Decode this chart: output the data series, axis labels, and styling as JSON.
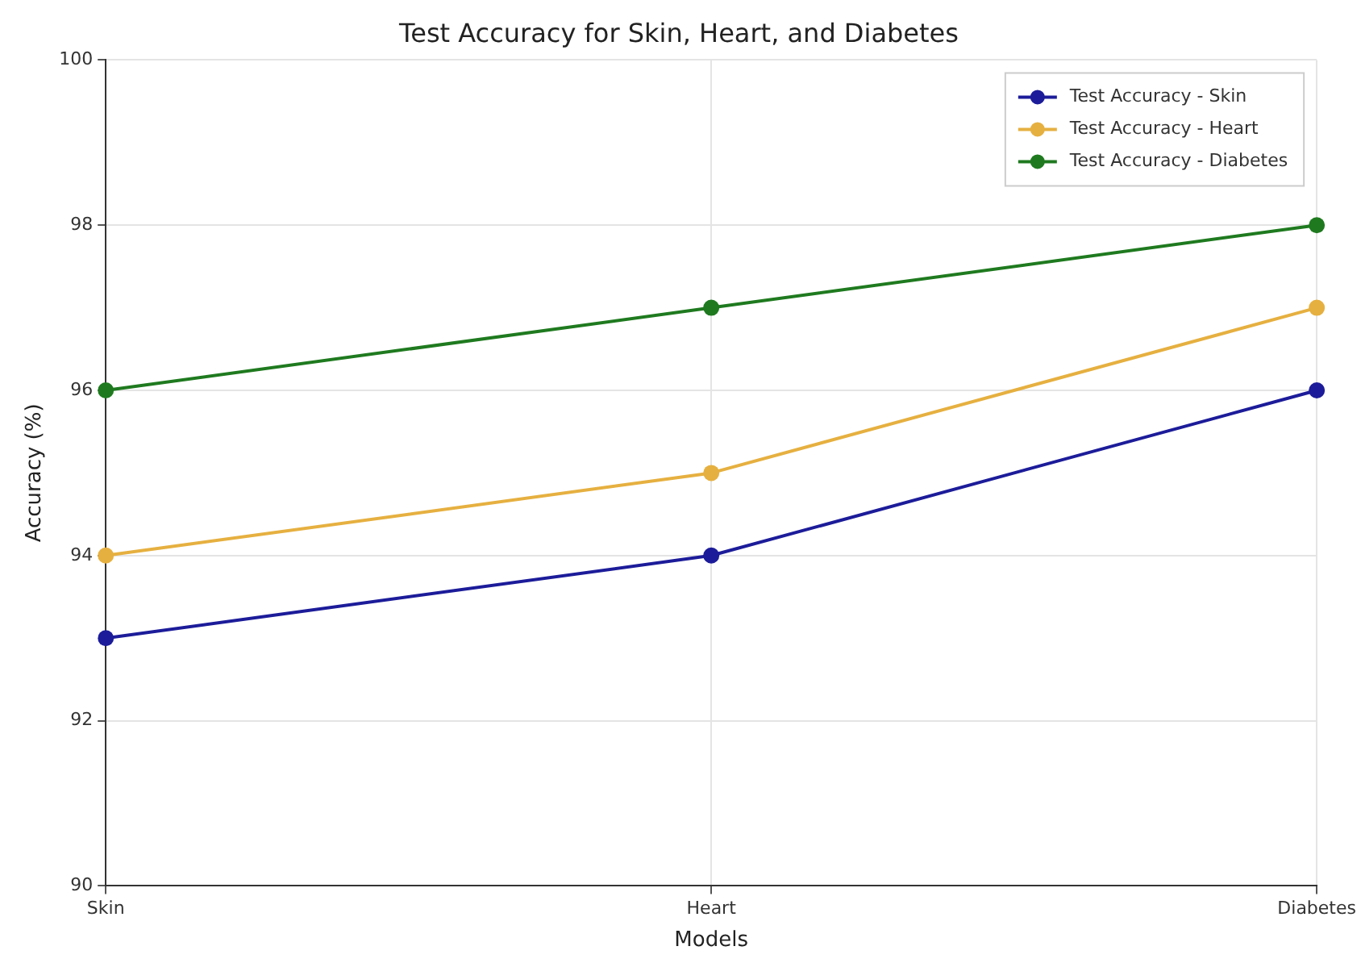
{
  "chart_data": {
    "type": "line",
    "title": "Test Accuracy for Skin, Heart, and Diabetes",
    "xlabel": "Models",
    "ylabel": "Accuracy (%)",
    "categories": [
      "Skin",
      "Heart",
      "Diabetes"
    ],
    "series": [
      {
        "name": "Test Accuracy - Skin",
        "color": "#1c1c9a",
        "values": [
          93,
          94,
          96
        ]
      },
      {
        "name": "Test Accuracy - Heart",
        "color": "#e6b040",
        "values": [
          94,
          95,
          97
        ]
      },
      {
        "name": "Test Accuracy - Diabetes",
        "color": "#1f7a1f",
        "values": [
          96,
          97,
          98
        ]
      }
    ],
    "ylim": [
      90,
      100
    ],
    "yticks": [
      90,
      92,
      94,
      96,
      98,
      100
    ],
    "grid": true,
    "legend": "top right",
    "marker": "circle",
    "line_style": "solid"
  }
}
